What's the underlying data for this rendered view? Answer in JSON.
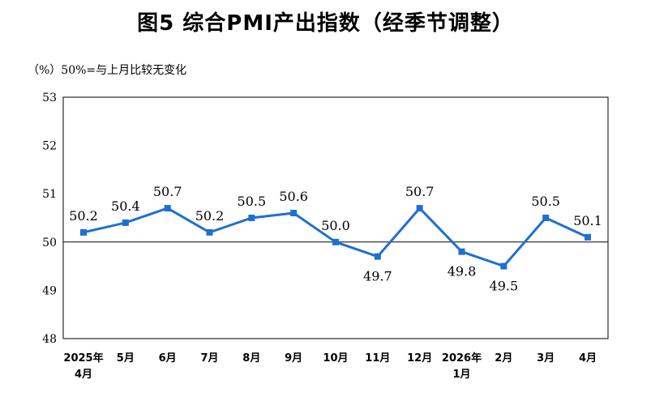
{
  "title": "图5  综合PMI产出指数（经季节调整）",
  "note": "（%）50%=与上月比较无变化",
  "chart_data": {
    "type": "line",
    "title": "图5  综合PMI产出指数（经季节调整）",
    "ylabel": "（%）",
    "reference_line": 50,
    "ylim": [
      48,
      53
    ],
    "yticks": [
      48,
      49,
      50,
      51,
      52,
      53
    ],
    "categories": [
      [
        "2025年",
        "4月"
      ],
      [
        "5月"
      ],
      [
        "6月"
      ],
      [
        "7月"
      ],
      [
        "8月"
      ],
      [
        "9月"
      ],
      [
        "10月"
      ],
      [
        "11月"
      ],
      [
        "12月"
      ],
      [
        "2026年",
        "1月"
      ],
      [
        "2月"
      ],
      [
        "3月"
      ],
      [
        "4月"
      ]
    ],
    "series": [
      {
        "color": "#1f6fd1",
        "values": [
          50.2,
          50.4,
          50.7,
          50.2,
          50.5,
          50.6,
          50.0,
          49.7,
          50.7,
          49.8,
          49.5,
          50.5,
          50.1
        ],
        "labels": [
          "50.2",
          "50.4",
          "50.7",
          "50.2",
          "50.5",
          "50.6",
          "50.0",
          "49.7",
          "50.7",
          "49.8",
          "49.5",
          "50.5",
          "50.1"
        ],
        "label_positions": [
          "above",
          "above",
          "above",
          "above",
          "above",
          "above",
          "above",
          "below",
          "above",
          "below",
          "below",
          "above",
          "above"
        ]
      }
    ],
    "grid": false,
    "legend": "none"
  }
}
